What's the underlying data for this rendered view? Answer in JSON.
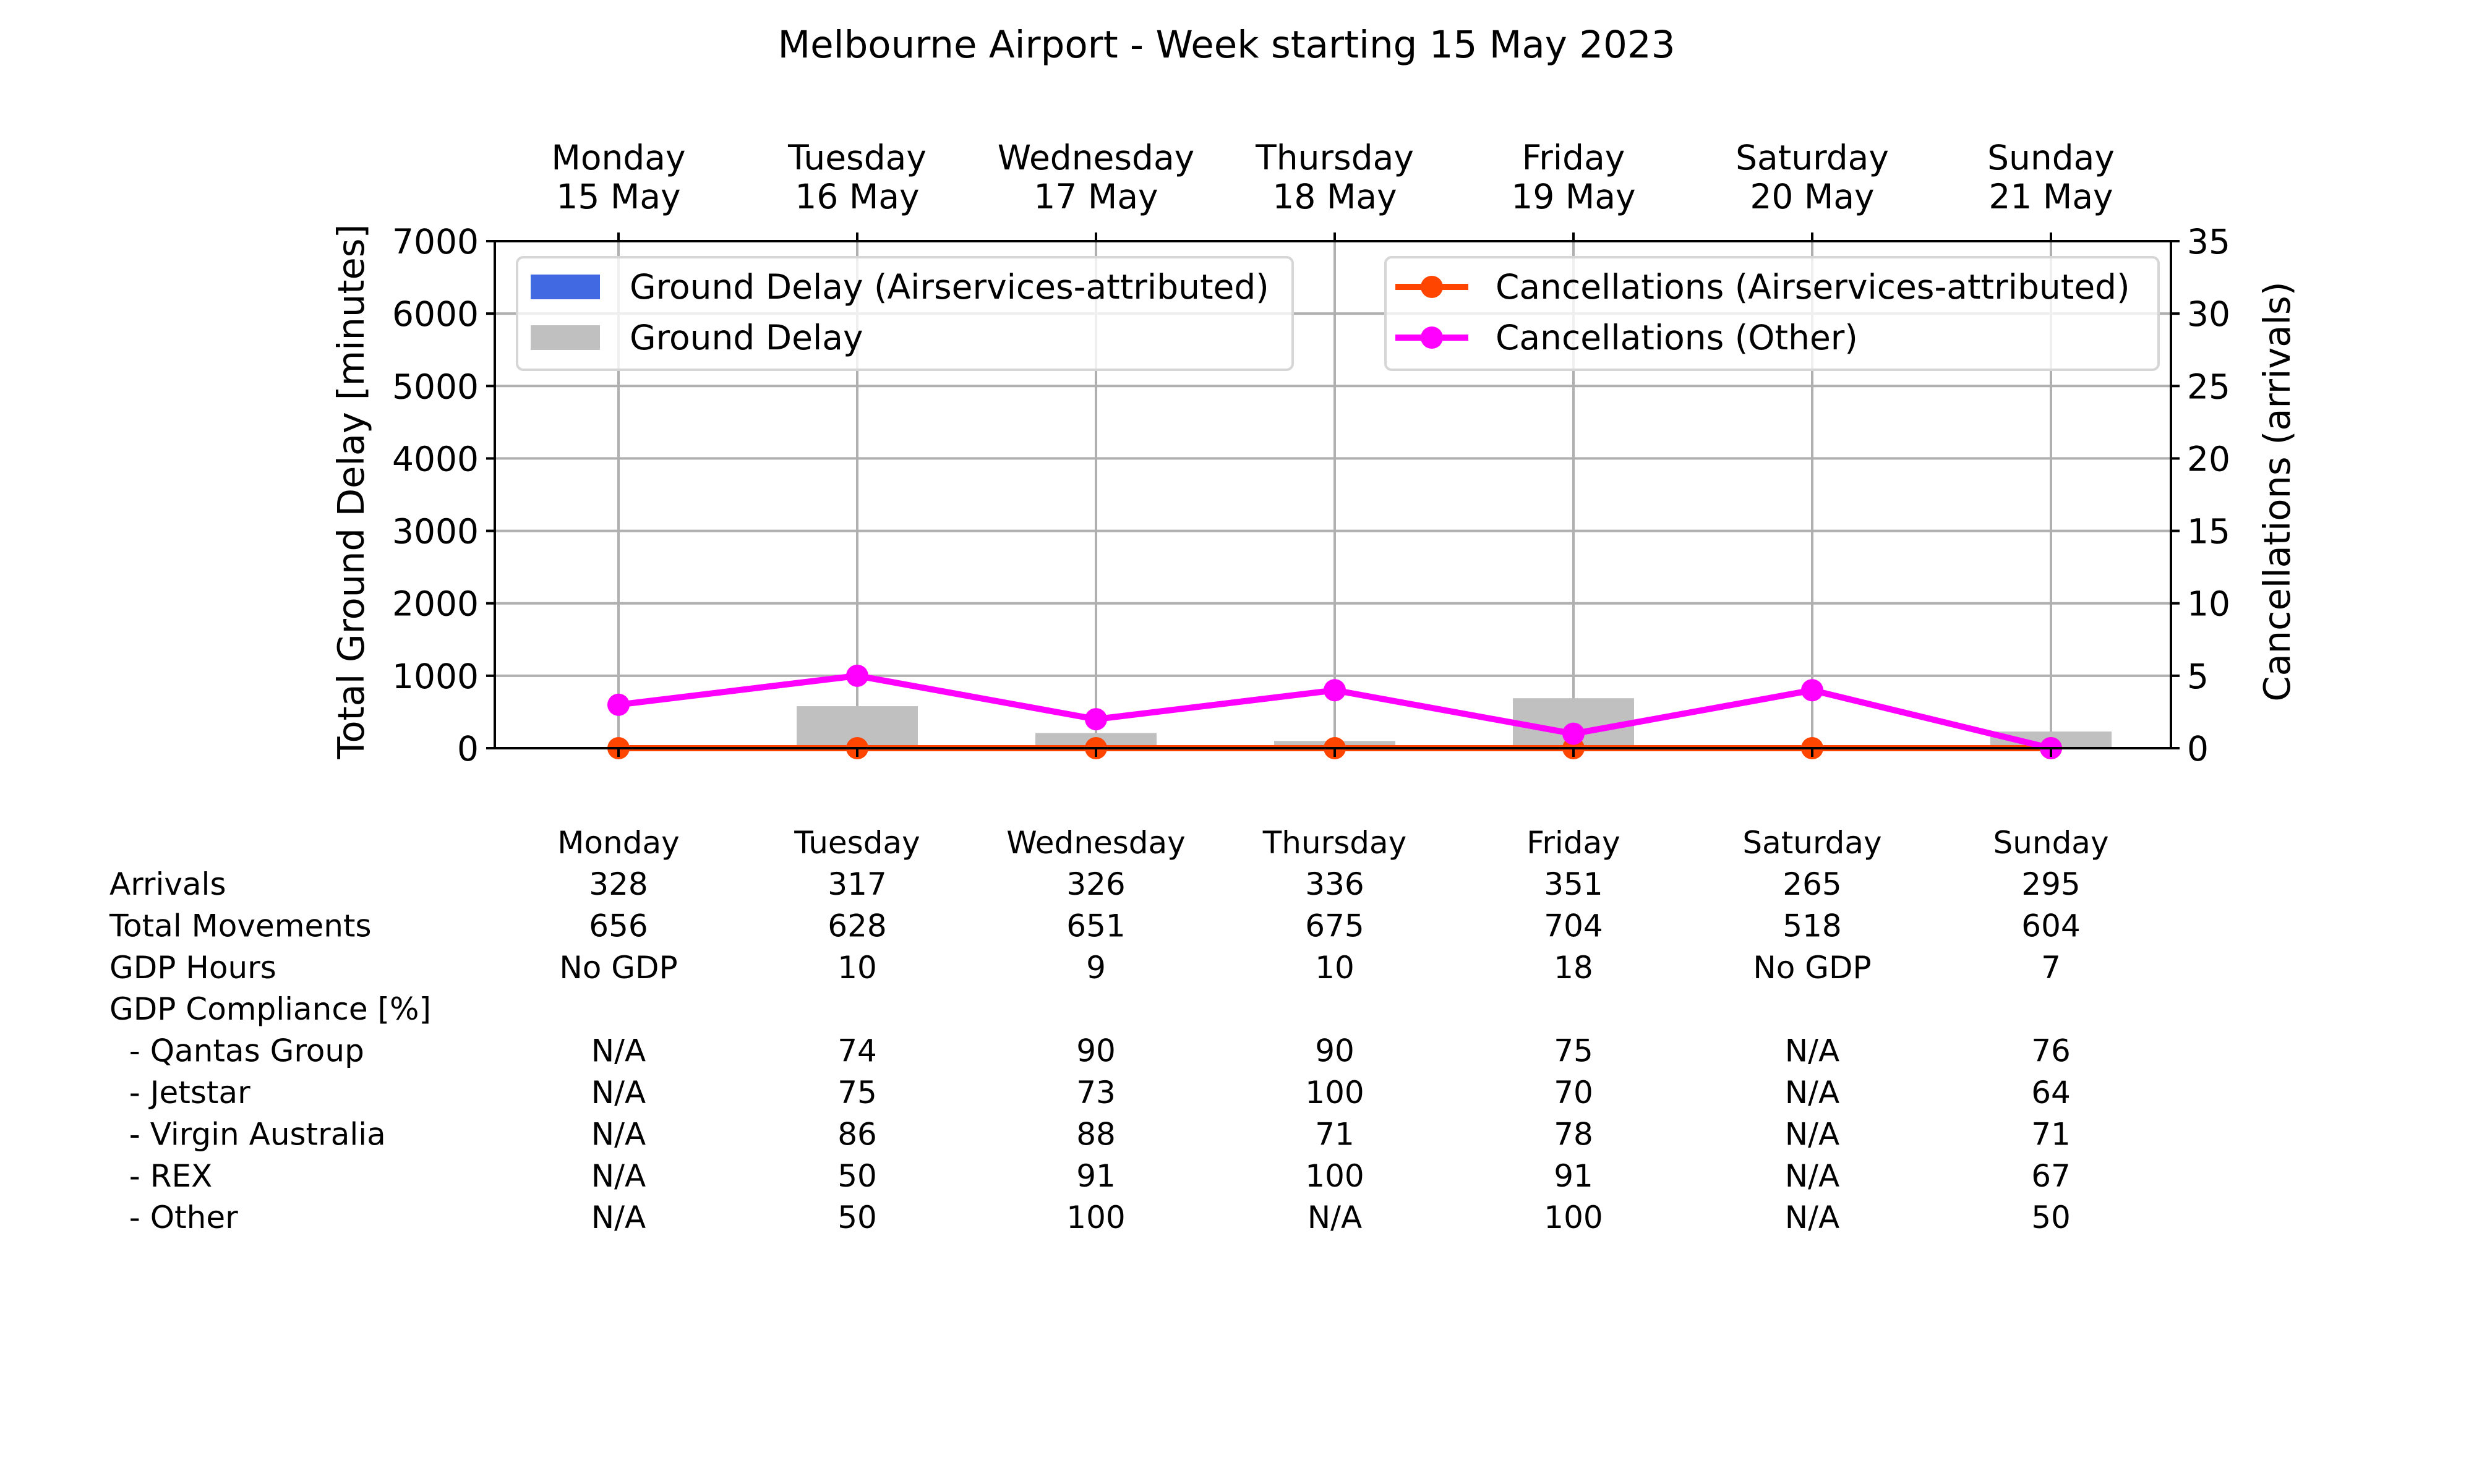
{
  "chart_data": {
    "type": "bar",
    "title": "Melbourne Airport - Week starting 15 May 2023",
    "days": [
      {
        "name": "Monday",
        "date": "15 May"
      },
      {
        "name": "Tuesday",
        "date": "16 May"
      },
      {
        "name": "Wednesday",
        "date": "17 May"
      },
      {
        "name": "Thursday",
        "date": "18 May"
      },
      {
        "name": "Friday",
        "date": "19 May"
      },
      {
        "name": "Saturday",
        "date": "20 May"
      },
      {
        "name": "Sunday",
        "date": "21 May"
      }
    ],
    "ylabel_left": "Total Ground Delay [minutes]",
    "ylabel_right": "Cancellations (arrivals)",
    "ylim_left": [
      0,
      7000
    ],
    "ylim_right": [
      0,
      35
    ],
    "yticks_left": [
      "0",
      "1000",
      "2000",
      "3000",
      "4000",
      "5000",
      "6000",
      "7000"
    ],
    "yticks_right": [
      "0",
      "5",
      "10",
      "15",
      "20",
      "25",
      "30",
      "35"
    ],
    "grid": true,
    "legend_left_placement": "upper-left",
    "legend_right_placement": "upper-right",
    "bar_series": [
      {
        "name": "Ground Delay (Airservices-attributed)",
        "color": "#4169e1",
        "values": [
          0,
          0,
          0,
          0,
          0,
          0,
          0
        ]
      },
      {
        "name": "Ground Delay",
        "color": "#c0c0c0",
        "values": [
          0,
          580,
          210,
          100,
          690,
          0,
          230
        ]
      }
    ],
    "line_series": [
      {
        "name": "Cancellations (Airservices-attributed)",
        "color": "#ff4500",
        "values": [
          0,
          0,
          0,
          0,
          0,
          0,
          0
        ]
      },
      {
        "name": "Cancellations (Other)",
        "color": "#ff00ff",
        "values": [
          3,
          5,
          2,
          4,
          1,
          4,
          0
        ]
      }
    ]
  },
  "table": {
    "headers": [
      "Monday",
      "Tuesday",
      "Wednesday",
      "Thursday",
      "Friday",
      "Saturday",
      "Sunday"
    ],
    "rows": [
      {
        "label": "Arrivals",
        "values": [
          "328",
          "317",
          "326",
          "336",
          "351",
          "265",
          "295"
        ]
      },
      {
        "label": "Total Movements",
        "values": [
          "656",
          "628",
          "651",
          "675",
          "704",
          "518",
          "604"
        ]
      },
      {
        "label": "GDP Hours",
        "values": [
          "No GDP",
          "10",
          "9",
          "10",
          "18",
          "No GDP",
          "7"
        ]
      },
      {
        "label": "GDP Compliance [%]",
        "values": [
          "",
          "",
          "",
          "",
          "",
          "",
          ""
        ]
      },
      {
        "label": "  - Qantas Group",
        "values": [
          "N/A",
          "74",
          "90",
          "90",
          "75",
          "N/A",
          "76"
        ]
      },
      {
        "label": "  - Jetstar",
        "values": [
          "N/A",
          "75",
          "73",
          "100",
          "70",
          "N/A",
          "64"
        ]
      },
      {
        "label": "  - Virgin Australia",
        "values": [
          "N/A",
          "86",
          "88",
          "71",
          "78",
          "N/A",
          "71"
        ]
      },
      {
        "label": "  - REX",
        "values": [
          "N/A",
          "50",
          "91",
          "100",
          "91",
          "N/A",
          "67"
        ]
      },
      {
        "label": "  - Other",
        "values": [
          "N/A",
          "50",
          "100",
          "N/A",
          "100",
          "N/A",
          "50"
        ]
      }
    ]
  }
}
